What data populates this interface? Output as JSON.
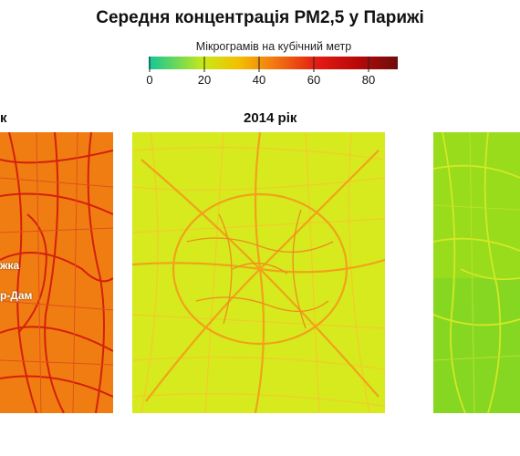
{
  "title": "Середня концентрація PM2,5 у Парижі",
  "legend": {
    "label": "Мікрограмів на кубічний метр",
    "ticks": [
      "0",
      "20",
      "40",
      "60",
      "80"
    ],
    "colors": [
      "#10c79a",
      "#c8e818",
      "#f3c000",
      "#f37a10",
      "#e31a12",
      "#b80808",
      "#6e0c0c"
    ]
  },
  "panels": [
    {
      "title": "к",
      "fill": "#f07d12",
      "road_color": "#d4200c",
      "labels": [
        "жка",
        "р-Дам"
      ]
    },
    {
      "title": "2014 рік",
      "fill": "#d6ea1e",
      "road_color": "#f2a21a",
      "secondary_road_color": "#f5c92a"
    },
    {
      "title": "",
      "fill": "#98dc1c",
      "road_color": "#d2e826"
    }
  ]
}
